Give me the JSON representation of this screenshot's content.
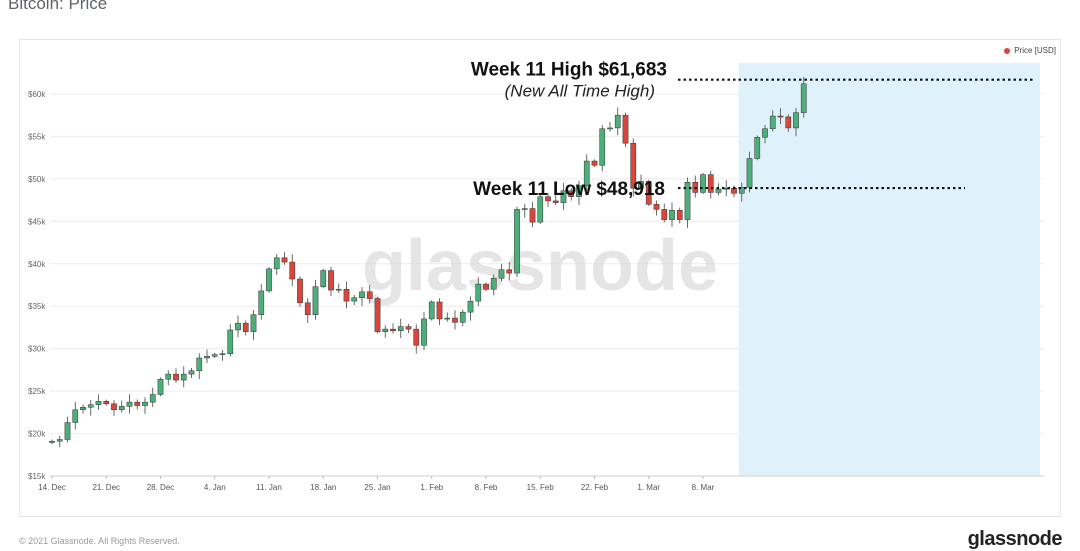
{
  "page": {
    "title": "Bitcoin: Price",
    "copyright": "© 2021 Glassnode. All Rights Reserved.",
    "brand": "glassnode",
    "watermark": "glassnode"
  },
  "colors": {
    "up": "#4caf7a",
    "down": "#d9473a",
    "highlight": "#dff1fb",
    "legend_dot": "#d9473a"
  },
  "chart_data": {
    "type": "candlestick",
    "series_name": "Price [USD]",
    "legend_position": "top-right",
    "grid": true,
    "ylim": [
      15000,
      64000
    ],
    "y_ticks": [
      {
        "value": 15000,
        "label": "$15k"
      },
      {
        "value": 20000,
        "label": "$20k"
      },
      {
        "value": 25000,
        "label": "$25k"
      },
      {
        "value": 30000,
        "label": "$30k"
      },
      {
        "value": 35000,
        "label": "$35k"
      },
      {
        "value": 40000,
        "label": "$40k"
      },
      {
        "value": 45000,
        "label": "$45k"
      },
      {
        "value": 50000,
        "label": "$50k"
      },
      {
        "value": 55000,
        "label": "$55k"
      },
      {
        "value": 60000,
        "label": "$60k"
      }
    ],
    "x_ticks": [
      "14. Dec",
      "21. Dec",
      "28. Dec",
      "4. Jan",
      "11. Jan",
      "18. Jan",
      "25. Jan",
      "1. Feb",
      "8. Feb",
      "15. Feb",
      "22. Feb",
      "1. Mar",
      "8. Mar"
    ],
    "x_start": "14. Dec",
    "closes": [
      19100,
      19300,
      21300,
      22800,
      23100,
      23400,
      23800,
      23500,
      22800,
      23200,
      23700,
      23300,
      23700,
      24600,
      26400,
      27000,
      26300,
      27000,
      27400,
      28900,
      29100,
      29300,
      29400,
      32200,
      33000,
      32000,
      34000,
      36800,
      39400,
      40700,
      40200,
      38200,
      35400,
      34000,
      37300,
      39200,
      36900,
      37000,
      35600,
      36000,
      36700,
      35900,
      32000,
      32300,
      32100,
      32600,
      32300,
      30400,
      33500,
      35500,
      33500,
      33600,
      33100,
      34300,
      35600,
      37600,
      37000,
      38300,
      39300,
      38900,
      46400,
      46500,
      44900,
      47900,
      47400,
      47200,
      48600,
      47900,
      49200,
      52100,
      51600,
      55900,
      56000,
      57500,
      54200,
      48900,
      49700,
      47000,
      46400,
      45200,
      46300,
      45200,
      49600,
      48400,
      50500,
      48400,
      48800,
      48900,
      48300,
      49000,
      52400,
      54900,
      55900,
      57400,
      57300,
      56000,
      57800,
      61200
    ],
    "week11_start_index": 89,
    "annotations": [
      {
        "label": "Week 11 High $61,683",
        "sub": "(New All Time High)",
        "value": 61683
      },
      {
        "label": "Week 11 Low $48,918",
        "value": 48918
      }
    ]
  }
}
